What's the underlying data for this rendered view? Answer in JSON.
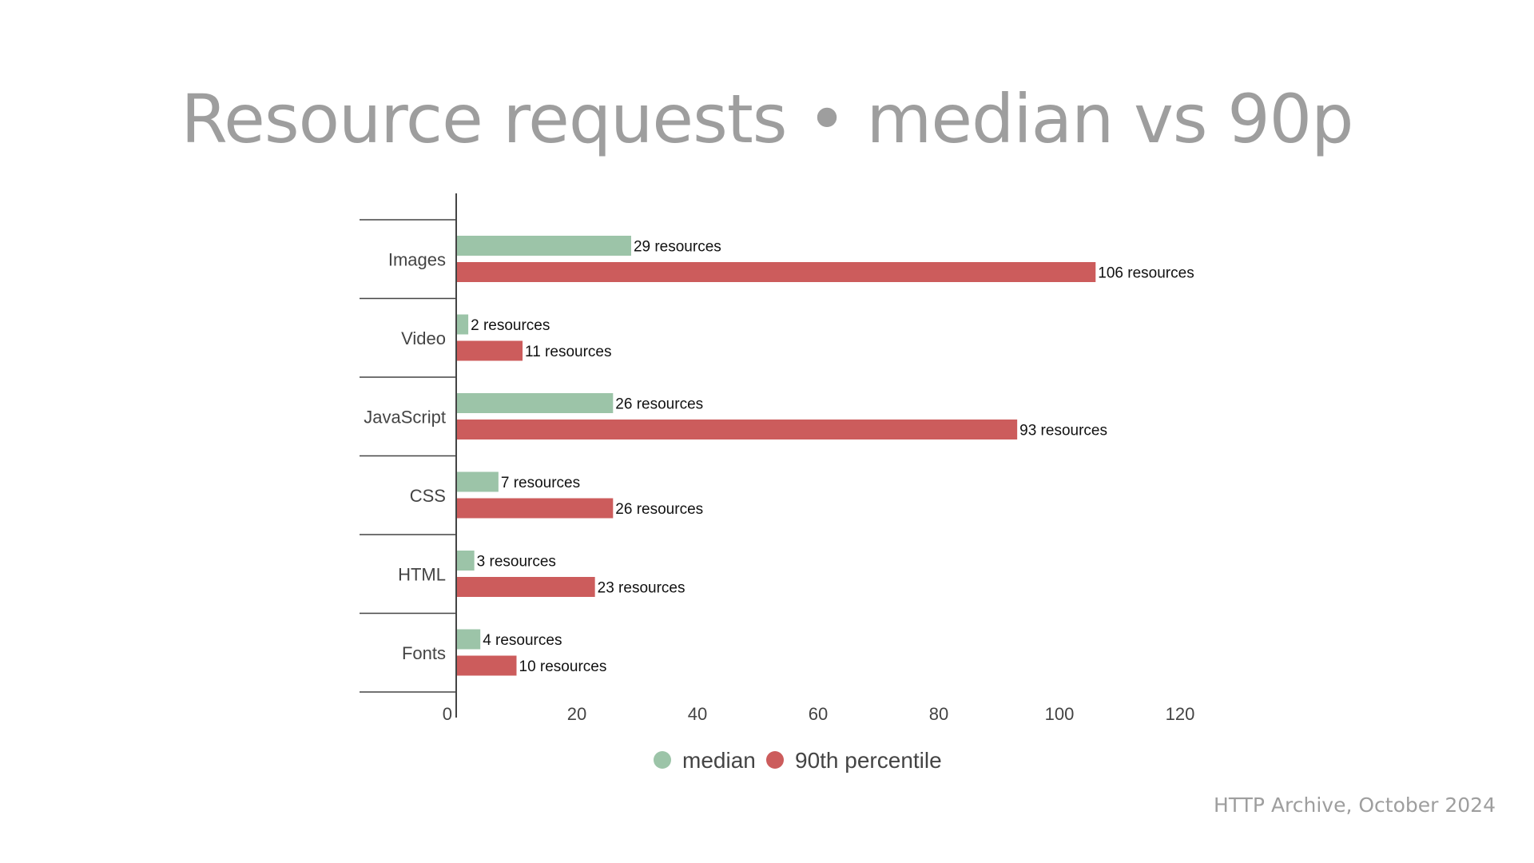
{
  "slide": {
    "title": "Resource requests • median vs 90p",
    "source": "HTTP Archive, October 2024"
  },
  "colors": {
    "median": "#9cc4a8",
    "p90": "#cc5c5c",
    "axis": "#444444"
  },
  "chart_data": {
    "type": "bar",
    "orientation": "horizontal",
    "categories": [
      "Images",
      "Video",
      "JavaScript",
      "CSS",
      "HTML",
      "Fonts"
    ],
    "series": [
      {
        "name": "median",
        "values": [
          29,
          2,
          26,
          7,
          3,
          4
        ],
        "labels": [
          "29 resources",
          "2 resources",
          "26 resources",
          "7 resources",
          "3 resources",
          "4 resources"
        ]
      },
      {
        "name": "90th percentile",
        "values": [
          106,
          11,
          93,
          26,
          23,
          10
        ],
        "labels": [
          "106 resources",
          "11 resources",
          "93 resources",
          "26 resources",
          "23 resources",
          "10 resources"
        ]
      }
    ],
    "xlim": [
      0,
      120
    ],
    "xticks": [
      "0",
      "20",
      "40",
      "60",
      "80",
      "100",
      "120"
    ],
    "grid": false,
    "legend": "bottom"
  }
}
